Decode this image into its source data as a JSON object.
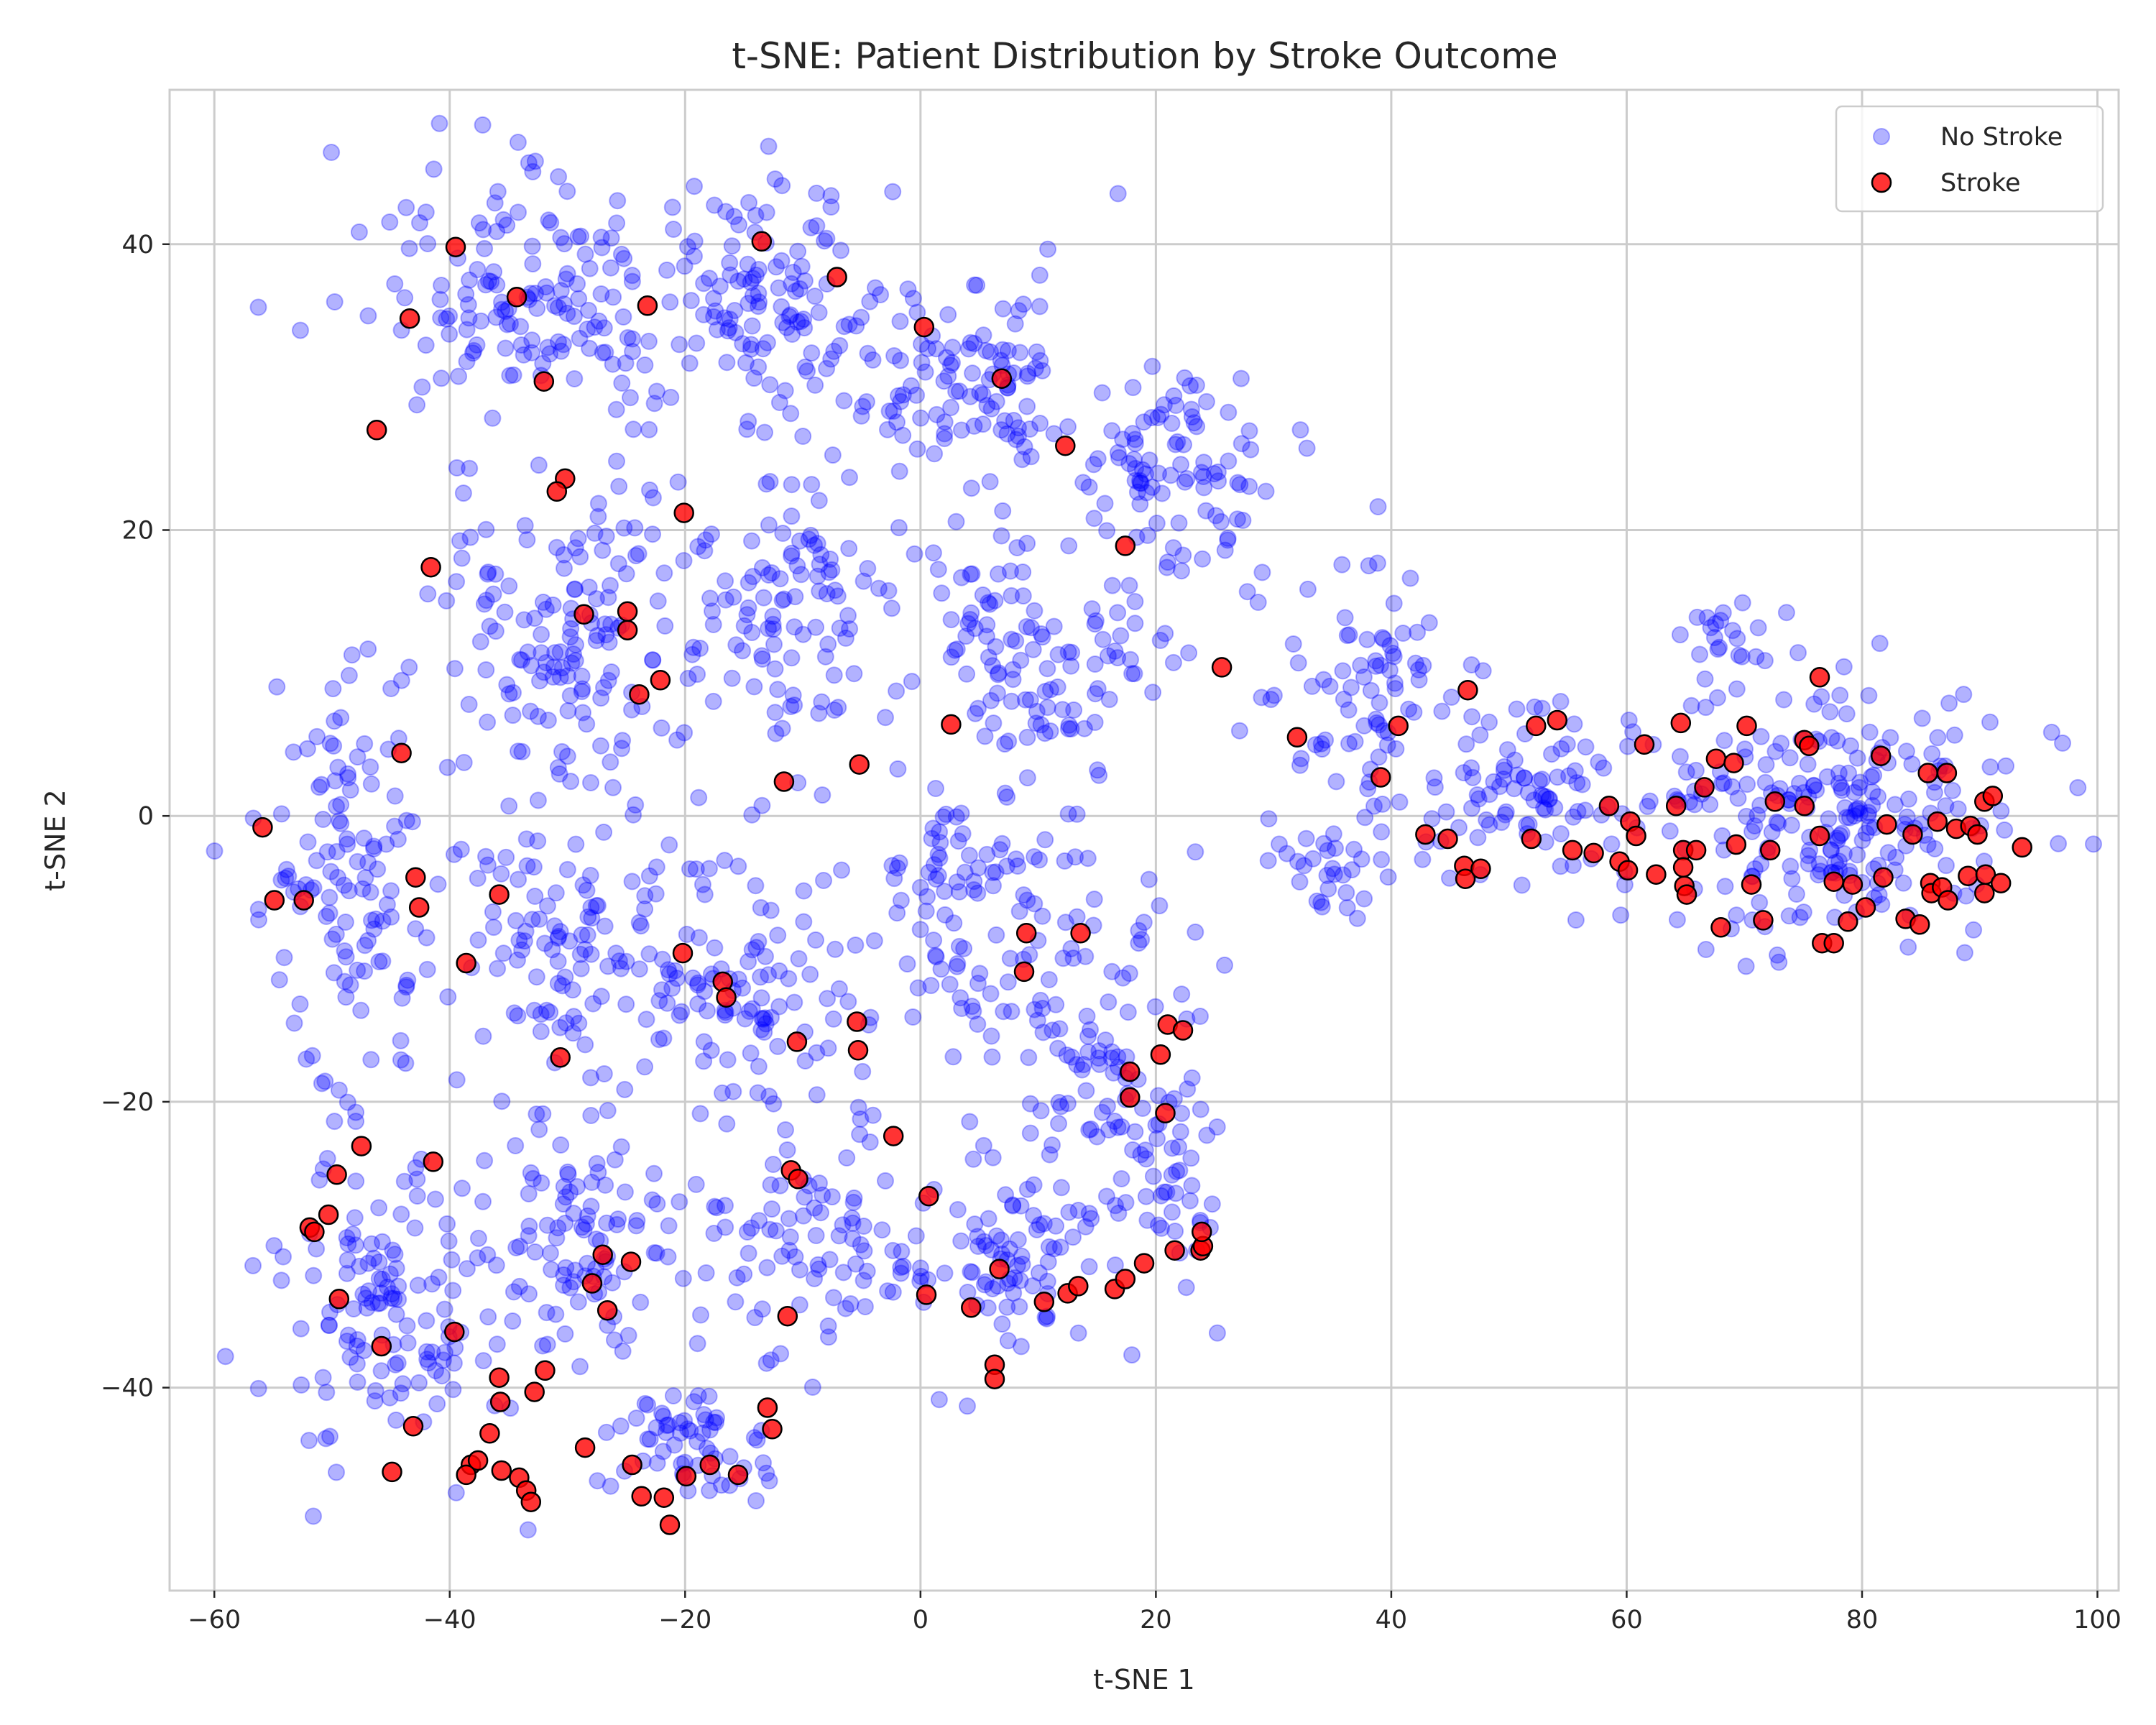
{
  "chart_data": {
    "type": "scatter",
    "title": "t-SNE: Patient Distribution by Stroke Outcome",
    "xlabel": "t-SNE 1",
    "ylabel": "t-SNE 2",
    "xlim": [
      -63.8,
      101.8
    ],
    "ylim": [
      -54.2,
      50.8
    ],
    "xticks": [
      -60,
      -40,
      -20,
      0,
      20,
      40,
      60,
      80,
      100
    ],
    "yticks": [
      -40,
      -20,
      0,
      20,
      40
    ],
    "xtick_labels": [
      "−60",
      "−40",
      "−20",
      "0",
      "20",
      "40",
      "60",
      "80",
      "100"
    ],
    "ytick_labels": [
      "−40",
      "−20",
      "0",
      "20",
      "40"
    ],
    "grid": true,
    "legend_position": "top-right",
    "series": [
      {
        "name": "No Stroke",
        "color": "#0000ff",
        "alpha": 0.3,
        "edge_color": "#0000ff",
        "clusters": [
          {
            "cx": -32,
            "cy": 36,
            "rx": 14,
            "ry": 9,
            "n": 160
          },
          {
            "cx": -12,
            "cy": 36,
            "rx": 10,
            "ry": 8,
            "n": 110
          },
          {
            "cx": 5,
            "cy": 30,
            "rx": 10,
            "ry": 8,
            "n": 110
          },
          {
            "cx": 22,
            "cy": 24,
            "rx": 9,
            "ry": 7,
            "n": 90
          },
          {
            "cx": -30,
            "cy": 12,
            "rx": 11,
            "ry": 12,
            "n": 150
          },
          {
            "cx": -12,
            "cy": 14,
            "rx": 9,
            "ry": 10,
            "n": 100
          },
          {
            "cx": 10,
            "cy": 12,
            "rx": 12,
            "ry": 9,
            "n": 120
          },
          {
            "cx": -48,
            "cy": -5,
            "rx": 8,
            "ry": 15,
            "n": 130
          },
          {
            "cx": -30,
            "cy": -10,
            "rx": 10,
            "ry": 9,
            "n": 100
          },
          {
            "cx": -15,
            "cy": -12,
            "rx": 10,
            "ry": 10,
            "n": 110
          },
          {
            "cx": 5,
            "cy": -6,
            "rx": 10,
            "ry": 9,
            "n": 90
          },
          {
            "cx": 15,
            "cy": -15,
            "rx": 8,
            "ry": 10,
            "n": 90
          },
          {
            "cx": -45,
            "cy": -35,
            "rx": 10,
            "ry": 10,
            "n": 130
          },
          {
            "cx": -28,
            "cy": -30,
            "rx": 9,
            "ry": 8,
            "n": 90
          },
          {
            "cx": -20,
            "cy": -44,
            "rx": 7,
            "ry": 4,
            "n": 60
          },
          {
            "cx": -8,
            "cy": -30,
            "rx": 8,
            "ry": 8,
            "n": 80
          },
          {
            "cx": 8,
            "cy": -30,
            "rx": 10,
            "ry": 8,
            "n": 90
          },
          {
            "cx": 22,
            "cy": -25,
            "rx": 4,
            "ry": 8,
            "n": 40
          },
          {
            "cx": 38,
            "cy": 10,
            "rx": 9,
            "ry": 8,
            "n": 70
          },
          {
            "cx": 35,
            "cy": -3,
            "rx": 6,
            "ry": 4,
            "n": 35
          },
          {
            "cx": 52,
            "cy": 2,
            "rx": 12,
            "ry": 6,
            "n": 90
          },
          {
            "cx": 78,
            "cy": 0,
            "rx": 15,
            "ry": 9,
            "n": 230
          },
          {
            "cx": 68,
            "cy": 12,
            "rx": 4,
            "ry": 3,
            "n": 20
          }
        ]
      },
      {
        "name": "Stroke",
        "color": "#ff0000",
        "alpha": 0.8,
        "edge_color": "#000000",
        "points": [
          [
            -39.5,
            39.8
          ],
          [
            -34.3,
            36.3
          ],
          [
            -43.4,
            34.8
          ],
          [
            -32,
            30.4
          ],
          [
            -46.2,
            27
          ],
          [
            -23.2,
            35.7
          ],
          [
            -13.5,
            40.2
          ],
          [
            -7.1,
            37.7
          ],
          [
            0.3,
            34.2
          ],
          [
            6.9,
            30.6
          ],
          [
            12.3,
            25.9
          ],
          [
            -30.2,
            23.6
          ],
          [
            -30.9,
            22.7
          ],
          [
            -20.1,
            21.2
          ],
          [
            -41.6,
            17.4
          ],
          [
            -28.6,
            14.1
          ],
          [
            -24.9,
            14.3
          ],
          [
            -24.9,
            13
          ],
          [
            -22.1,
            9.5
          ],
          [
            -23.9,
            8.5
          ],
          [
            17.4,
            18.9
          ],
          [
            25.6,
            10.4
          ],
          [
            -44.1,
            4.4
          ],
          [
            2.6,
            6.4
          ],
          [
            -11.6,
            2.4
          ],
          [
            -5.2,
            3.6
          ],
          [
            -55.9,
            -0.8
          ],
          [
            -54.9,
            -5.9
          ],
          [
            -52.4,
            -5.9
          ],
          [
            -42.9,
            -4.3
          ],
          [
            -42.6,
            -6.4
          ],
          [
            -35.8,
            -5.5
          ],
          [
            -38.6,
            -10.3
          ],
          [
            -20.2,
            -9.6
          ],
          [
            -16.8,
            -11.6
          ],
          [
            -16.5,
            -12.7
          ],
          [
            9,
            -8.2
          ],
          [
            13.6,
            -8.2
          ],
          [
            8.8,
            -10.9
          ],
          [
            -10.5,
            -15.8
          ],
          [
            -5.4,
            -14.4
          ],
          [
            -5.3,
            -16.4
          ],
          [
            -30.6,
            -16.9
          ],
          [
            -2.3,
            -22.4
          ],
          [
            0.7,
            -26.6
          ],
          [
            -47.5,
            -23.1
          ],
          [
            -41.4,
            -24.2
          ],
          [
            -49.6,
            -25.1
          ],
          [
            -11,
            -24.8
          ],
          [
            -10.4,
            -25.4
          ],
          [
            17.8,
            -17.9
          ],
          [
            17.8,
            -19.7
          ],
          [
            20.4,
            -16.7
          ],
          [
            20.8,
            -20.8
          ],
          [
            21,
            -14.6
          ],
          [
            22.3,
            -15
          ],
          [
            -50.3,
            -27.9
          ],
          [
            -51.9,
            -28.8
          ],
          [
            -51.5,
            -29.1
          ],
          [
            -27,
            -30.7
          ],
          [
            -24.6,
            -31.2
          ],
          [
            -27.9,
            -32.7
          ],
          [
            -26.6,
            -34.6
          ],
          [
            -49.4,
            -33.8
          ],
          [
            -11.3,
            -35
          ],
          [
            0.5,
            -33.5
          ],
          [
            4.3,
            -34.4
          ],
          [
            10.5,
            -34
          ],
          [
            12.5,
            -33.4
          ],
          [
            13.4,
            -32.9
          ],
          [
            16.5,
            -33.1
          ],
          [
            17.4,
            -32.4
          ],
          [
            19,
            -31.3
          ],
          [
            21.6,
            -30.4
          ],
          [
            23.8,
            -30.4
          ],
          [
            24,
            -30.1
          ],
          [
            23.9,
            -29.1
          ],
          [
            -45.8,
            -37.1
          ],
          [
            -39.6,
            -36.1
          ],
          [
            -35.8,
            -39.3
          ],
          [
            -35.7,
            -41
          ],
          [
            -31.9,
            -38.8
          ],
          [
            -32.8,
            -40.3
          ],
          [
            -36.6,
            -43.2
          ],
          [
            -43.1,
            -42.7
          ],
          [
            -28.5,
            -44.2
          ],
          [
            -13,
            -41.4
          ],
          [
            -12.6,
            -42.9
          ],
          [
            6.3,
            -38.4
          ],
          [
            6.3,
            -39.4
          ],
          [
            -38.2,
            -45.4
          ],
          [
            -37.6,
            -45.1
          ],
          [
            -38.6,
            -46.1
          ],
          [
            -35.6,
            -45.8
          ],
          [
            -34.1,
            -46.3
          ],
          [
            -33.5,
            -47.2
          ],
          [
            -33.1,
            -48
          ],
          [
            -44.9,
            -45.9
          ],
          [
            -24.5,
            -45.4
          ],
          [
            -23.7,
            -47.6
          ],
          [
            -21.8,
            -47.7
          ],
          [
            -17.9,
            -45.4
          ],
          [
            -15.5,
            -46.1
          ],
          [
            -19.9,
            -46.2
          ],
          [
            -21.3,
            -49.6
          ],
          [
            6.7,
            -31.7
          ],
          [
            32,
            5.5
          ],
          [
            40.6,
            6.3
          ],
          [
            39.1,
            2.7
          ],
          [
            46.5,
            8.8
          ],
          [
            52.3,
            6.3
          ],
          [
            54.1,
            6.7
          ],
          [
            42.9,
            -1.3
          ],
          [
            44.8,
            -1.6
          ],
          [
            46.2,
            -3.5
          ],
          [
            46.3,
            -4.4
          ],
          [
            47.6,
            -3.7
          ],
          [
            51.9,
            -1.6
          ],
          [
            55.4,
            -2.4
          ],
          [
            57.2,
            -2.6
          ],
          [
            58.5,
            0.7
          ],
          [
            59.4,
            -3.2
          ],
          [
            60.1,
            -3.8
          ],
          [
            60.3,
            -0.4
          ],
          [
            60.8,
            -1.4
          ],
          [
            61.5,
            5
          ],
          [
            62.5,
            -4.1
          ],
          [
            64.2,
            0.7
          ],
          [
            64.6,
            6.5
          ],
          [
            64.8,
            -2.4
          ],
          [
            64.8,
            -3.6
          ],
          [
            64.9,
            -4.9
          ],
          [
            65.1,
            -5.5
          ],
          [
            65.9,
            -2.4
          ],
          [
            66.6,
            2
          ],
          [
            67.6,
            4
          ],
          [
            68,
            -7.8
          ],
          [
            69.1,
            3.7
          ],
          [
            69.3,
            -2
          ],
          [
            70.2,
            6.3
          ],
          [
            70.6,
            -4.8
          ],
          [
            71.6,
            -7.3
          ],
          [
            72.2,
            -2.4
          ],
          [
            72.6,
            1
          ],
          [
            75.1,
            0.7
          ],
          [
            75.1,
            5.3
          ],
          [
            75.5,
            4.9
          ],
          [
            76.4,
            9.7
          ],
          [
            76.4,
            -1.4
          ],
          [
            76.6,
            -8.9
          ],
          [
            77.6,
            -8.9
          ],
          [
            77.6,
            -4.6
          ],
          [
            78.8,
            -7.4
          ],
          [
            79.2,
            -4.8
          ],
          [
            80.3,
            -6.4
          ],
          [
            81.6,
            4.2
          ],
          [
            81.8,
            -4.3
          ],
          [
            82.1,
            -0.6
          ],
          [
            83.7,
            -7.2
          ],
          [
            84.3,
            -1.3
          ],
          [
            84.9,
            -7.6
          ],
          [
            85.6,
            3
          ],
          [
            85.8,
            -4.7
          ],
          [
            85.9,
            -5.4
          ],
          [
            86.4,
            -0.4
          ],
          [
            86.8,
            -5
          ],
          [
            87.2,
            3
          ],
          [
            87.3,
            -5.9
          ],
          [
            88,
            -0.9
          ],
          [
            89,
            -4.2
          ],
          [
            89.2,
            -0.7
          ],
          [
            89.8,
            -1.3
          ],
          [
            90.4,
            1
          ],
          [
            90.5,
            -4.1
          ],
          [
            90.4,
            -5.4
          ],
          [
            91.1,
            1.4
          ],
          [
            91.8,
            -4.7
          ],
          [
            93.6,
            -2.2
          ]
        ]
      }
    ]
  }
}
